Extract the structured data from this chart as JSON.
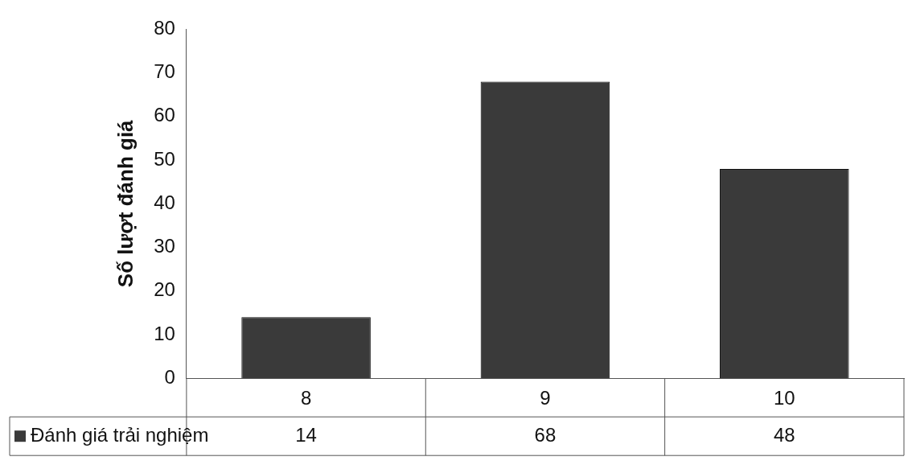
{
  "chart_data": {
    "type": "bar",
    "ylabel": "Số lượt đánh giá",
    "categories": [
      "8",
      "9",
      "10"
    ],
    "series": [
      {
        "name": "Đánh giá trải nghiệm",
        "color": "#3a3a3a",
        "values": [
          14,
          68,
          48
        ]
      }
    ],
    "ylim": [
      0,
      80
    ],
    "yticks": [
      0,
      10,
      20,
      30,
      40,
      50,
      60,
      70,
      80
    ],
    "grid": false,
    "legend": "bottom",
    "data_labels": true
  }
}
